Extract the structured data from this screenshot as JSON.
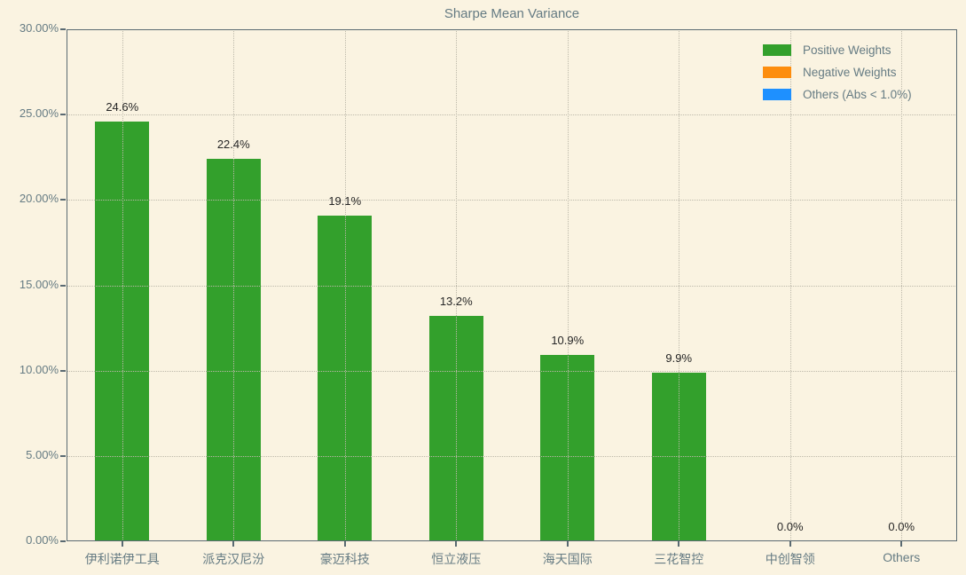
{
  "chart_data": {
    "type": "bar",
    "title": "Sharpe Mean Variance",
    "categories": [
      "伊利诺伊工具",
      "派克汉尼汾",
      "豪迈科技",
      "恒立液压",
      "海天国际",
      "三花智控",
      "中创智领",
      "Others"
    ],
    "values": [
      24.6,
      22.4,
      19.1,
      13.2,
      10.9,
      9.9,
      0.0,
      0.0
    ],
    "value_labels": [
      "24.6%",
      "22.4%",
      "19.1%",
      "13.2%",
      "10.9%",
      "9.9%",
      "0.0%",
      "0.0%"
    ],
    "xlabel": "",
    "ylabel": "",
    "ylim": [
      0,
      30
    ],
    "ytick_values": [
      0,
      5,
      10,
      15,
      20,
      25,
      30
    ],
    "ytick_labels": [
      "0.00%",
      "5.00%",
      "10.00%",
      "15.00%",
      "20.00%",
      "25.00%",
      "30.00%"
    ],
    "grid": "dotted, both axes, drawn over bars",
    "bar_color": "#33a02c",
    "legend": {
      "position": "upper-right",
      "entries": [
        {
          "label": "Positive Weights",
          "color": "#33a02c"
        },
        {
          "label": "Negative Weights",
          "color": "#fd8d0e"
        },
        {
          "label": "Others (Abs < 1.0%)",
          "color": "#1e90ff"
        }
      ]
    },
    "colors": {
      "background": "#faf3e1",
      "axis_text": "#657b83",
      "value_text": "#262626",
      "spine": "#5a6a72",
      "grid": "#bdb9aa"
    }
  }
}
